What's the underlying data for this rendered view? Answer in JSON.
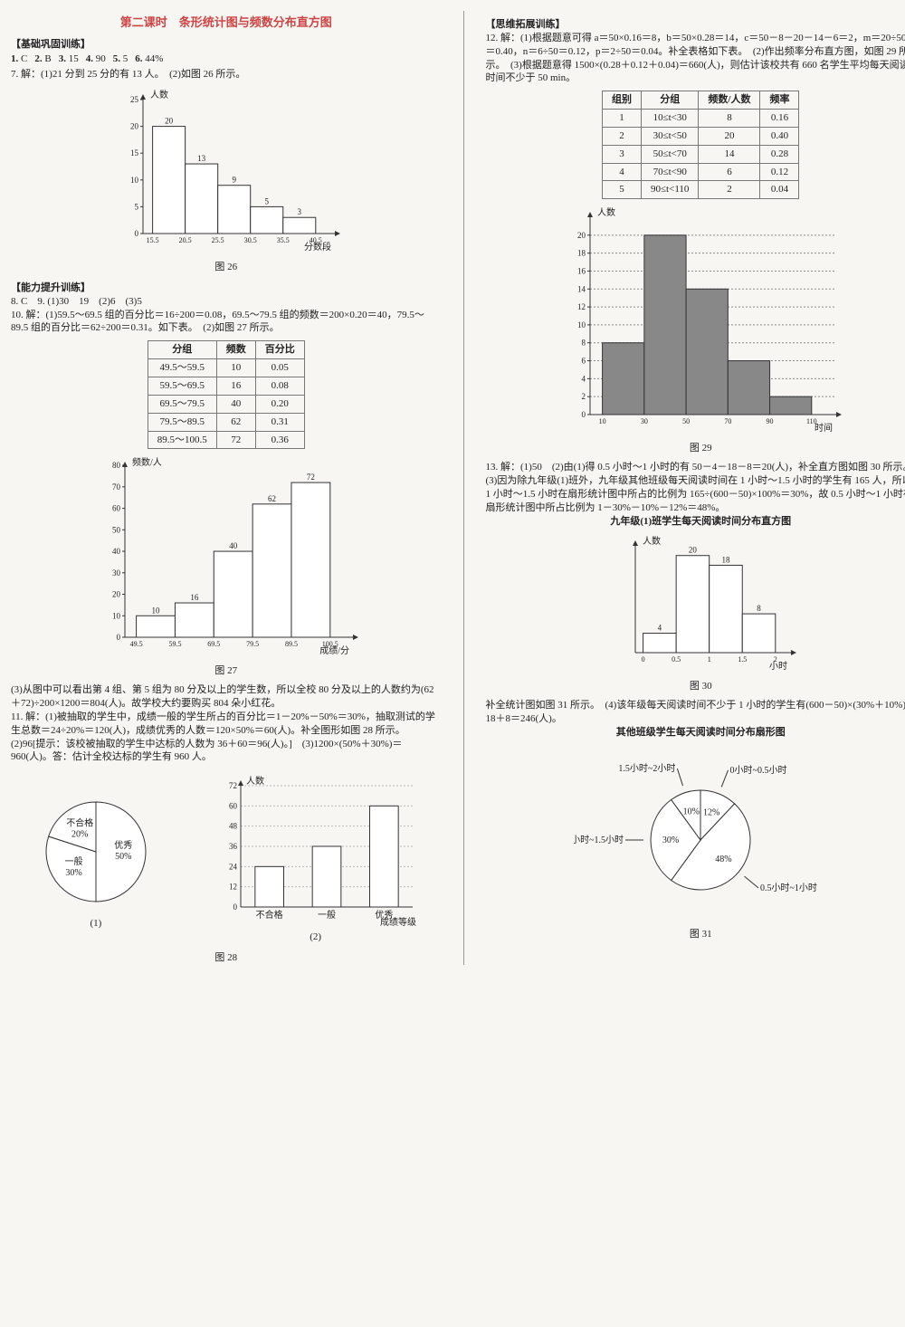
{
  "left": {
    "title": "第二课时　条形统计图与频数分布直方图",
    "sec1_head": "【基础巩固训练】",
    "ans1": [
      {
        "n": "1.",
        "v": "C"
      },
      {
        "n": "2.",
        "v": "B"
      },
      {
        "n": "3.",
        "v": "15"
      },
      {
        "n": "4.",
        "v": "90"
      },
      {
        "n": "5.",
        "v": "5"
      },
      {
        "n": "6.",
        "v": "44%"
      }
    ],
    "q7": "7. 解：(1)21 分到 25 分的有 13 人。　(2)如图 26 所示。",
    "chart26": {
      "ylabel": "人数",
      "xlabel": "分数段",
      "ymax": 25,
      "ytick": 5,
      "cats": [
        "15.5",
        "20.5",
        "25.5",
        "30.5",
        "35.5",
        "40.5"
      ],
      "vals": [
        20,
        13,
        9,
        5,
        3
      ],
      "val_labels": [
        "20",
        "13",
        "9",
        "5",
        "3"
      ],
      "bar_fill": "#ffffff",
      "bar_stroke": "#333",
      "caption": "图 26"
    },
    "sec2_head": "【能力提升训练】",
    "ans2_line1": "8. C　9. (1)30　19　(2)6　(3)5",
    "q10": "10. 解：(1)59.5～69.5 组的百分比＝16÷200＝0.08，69.5～79.5 组的频数＝200×0.20＝40，79.5～89.5 组的百分比＝62÷200＝0.31。如下表。　(2)如图 27 所示。",
    "table10": {
      "headers": [
        "分组",
        "频数",
        "百分比"
      ],
      "rows": [
        [
          "49.5～59.5",
          "10",
          "0.05"
        ],
        [
          "59.5～69.5",
          "16",
          "0.08"
        ],
        [
          "69.5～79.5",
          "40",
          "0.20"
        ],
        [
          "79.5～89.5",
          "62",
          "0.31"
        ],
        [
          "89.5～100.5",
          "72",
          "0.36"
        ]
      ]
    },
    "chart27": {
      "ylabel": "频数/人",
      "xlabel": "成绩/分",
      "yticks": [
        0,
        10,
        20,
        30,
        40,
        50,
        60,
        70,
        80
      ],
      "cats": [
        "49.5",
        "59.5",
        "69.5",
        "79.5",
        "89.5",
        "100.5"
      ],
      "vals": [
        10,
        16,
        40,
        62,
        72
      ],
      "val_labels": [
        "10",
        "16",
        "40",
        "62",
        "72"
      ],
      "bar_fill": "#ffffff",
      "bar_stroke": "#333",
      "caption": "图 27"
    },
    "q10_3": "(3)从图中可以看出第 4 组、第 5 组为 80 分及以上的学生数，所以全校 80 分及以上的人数约为(62＋72)÷200×1200＝804(人)。故学校大约要购买 804 朵小红花。",
    "q11": "11. 解：(1)被抽取的学生中，成绩一般的学生所占的百分比＝1－20%－50%＝30%，抽取测试的学生总数＝24÷20%＝120(人)，成绩优秀的人数＝120×50%＝60(人)。补全图形如图 28 所示。　(2)96[提示：该校被抽取的学生中达标的人数为 36＋60＝96(人)。]　(3)1200×(50%＋30%)＝960(人)。答：估计全校达标的学生有 960 人。",
    "pie28": {
      "labels": [
        "优秀",
        "一般",
        "不合格"
      ],
      "pcts": [
        50,
        30,
        20
      ],
      "pct_text": [
        "50%",
        "30%",
        "20%"
      ],
      "colors": [
        "#ffffff",
        "#ffffff",
        "#ffffff"
      ],
      "stroke": "#333",
      "caption": "(1)"
    },
    "bar28": {
      "ylabel": "人数",
      "xlabel": "成绩等级",
      "yticks": [
        0,
        12,
        24,
        36,
        48,
        60,
        72
      ],
      "cats": [
        "不合格",
        "一般",
        "优秀"
      ],
      "vals": [
        24,
        36,
        60
      ],
      "bar_fill": "#ffffff",
      "bar_stroke": "#333",
      "caption": "(2)"
    },
    "fig28_caption": "图 28"
  },
  "right": {
    "sec3_head": "【思维拓展训练】",
    "q12": "12. 解：(1)根据题意可得 a＝50×0.16＝8，b＝50×0.28＝14，c＝50－8－20－14－6＝2，m＝20÷50＝0.40，n＝6÷50＝0.12，p＝2÷50＝0.04。补全表格如下表。　(2)作出频率分布直方图，如图 29 所示。　(3)根据题意得 1500×(0.28＋0.12＋0.04)＝660(人)，则估计该校共有 660 名学生平均每天阅读时间不少于 50 min。",
    "table12": {
      "headers": [
        "组别",
        "分组",
        "频数/人数",
        "频率"
      ],
      "rows": [
        [
          "1",
          "10≤t<30",
          "8",
          "0.16"
        ],
        [
          "2",
          "30≤t<50",
          "20",
          "0.40"
        ],
        [
          "3",
          "50≤t<70",
          "14",
          "0.28"
        ],
        [
          "4",
          "70≤t<90",
          "6",
          "0.12"
        ],
        [
          "5",
          "90≤t<110",
          "2",
          "0.04"
        ]
      ]
    },
    "chart29": {
      "ylabel": "人数",
      "xlabel": "时间",
      "yticks": [
        0,
        2,
        4,
        6,
        8,
        10,
        12,
        14,
        16,
        18,
        20
      ],
      "cats": [
        "10",
        "30",
        "50",
        "70",
        "90",
        "110"
      ],
      "vals": [
        8,
        20,
        14,
        6,
        2
      ],
      "bar_fill": "#888",
      "bar_stroke": "#333",
      "grid_color": "#888",
      "caption": "图 29"
    },
    "q13": "13. 解：(1)50　(2)由(1)得 0.5 小时～1 小时的有 50－4－18－8＝20(人)，补全直方图如图 30 所示。　(3)因为除九年级(1)班外，九年级其他班级每天阅读时间在 1 小时～1.5 小时的学生有 165 人，所以 1 小时～1.5 小时在扇形统计图中所占的比例为 165÷(600－50)×100%＝30%，故 0.5 小时～1 小时在扇形统计图中所占比例为 1－30%－10%－12%＝48%。",
    "chart30_title": "九年级(1)班学生每天阅读时间分布直方图",
    "chart30": {
      "ylabel": "人数",
      "xlabel": "小时",
      "cats": [
        "0",
        "0.5",
        "1",
        "1.5",
        "2"
      ],
      "vals": [
        4,
        20,
        18,
        8
      ],
      "val_labels": [
        "4",
        "20",
        "18",
        "8"
      ],
      "bar_fill": "#ffffff",
      "bar_stroke": "#333",
      "caption": "图 30"
    },
    "q13_4": "补全统计图如图 31 所示。　(4)该年级每天阅读时间不少于 1 小时的学生有(600－50)×(30%＋10%)＋18＋8＝246(人)。",
    "pie31_title": "其他班级学生每天阅读时间分布扇形图",
    "pie31": {
      "slices": [
        {
          "label": "0小时~0.5小时",
          "pct": 12,
          "text": "12%"
        },
        {
          "label": "0.5小时~1小时",
          "pct": 48,
          "text": "48%"
        },
        {
          "label": "1小时~1.5小时",
          "pct": 30,
          "text": "30%"
        },
        {
          "label": "1.5小时~2小时",
          "pct": 10,
          "text": "10%"
        }
      ],
      "stroke": "#333",
      "fill": "#ffffff",
      "caption": "图 31"
    }
  }
}
